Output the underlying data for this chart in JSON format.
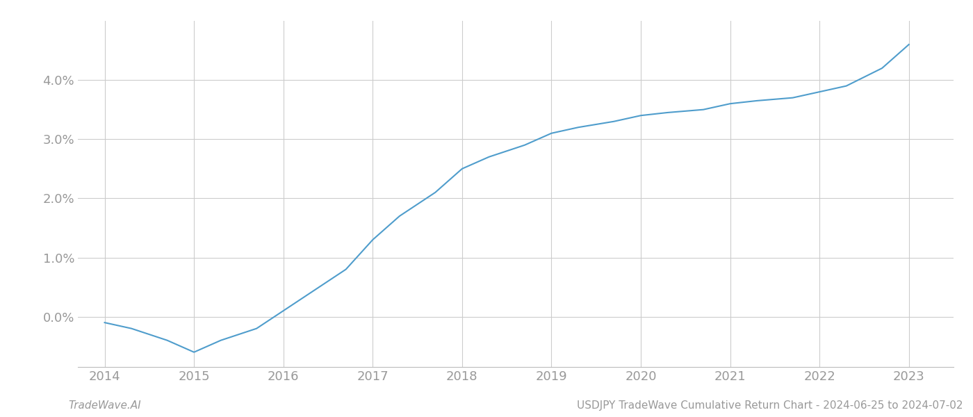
{
  "title": "USDJPY TradeWave Cumulative Return Chart - 2024-06-25 to 2024-07-02",
  "watermark": "TradeWave.AI",
  "x_values": [
    2014.0,
    2014.3,
    2014.7,
    2015.0,
    2015.3,
    2015.7,
    2016.0,
    2016.3,
    2016.7,
    2017.0,
    2017.3,
    2017.7,
    2018.0,
    2018.3,
    2018.7,
    2019.0,
    2019.3,
    2019.7,
    2020.0,
    2020.3,
    2020.7,
    2021.0,
    2021.3,
    2021.7,
    2022.0,
    2022.3,
    2022.7,
    2023.0
  ],
  "y_values": [
    -0.001,
    -0.002,
    -0.004,
    -0.006,
    -0.004,
    -0.002,
    0.001,
    0.004,
    0.008,
    0.013,
    0.017,
    0.021,
    0.025,
    0.027,
    0.029,
    0.031,
    0.032,
    0.033,
    0.034,
    0.0345,
    0.035,
    0.036,
    0.0365,
    0.037,
    0.038,
    0.039,
    0.042,
    0.046
  ],
  "line_color": "#4f9dcc",
  "line_width": 1.5,
  "bg_color": "#ffffff",
  "grid_color": "#cccccc",
  "tick_label_color": "#999999",
  "x_ticks": [
    2014,
    2015,
    2016,
    2017,
    2018,
    2019,
    2020,
    2021,
    2022,
    2023
  ],
  "x_tick_labels": [
    "2014",
    "2015",
    "2016",
    "2017",
    "2018",
    "2019",
    "2020",
    "2021",
    "2022",
    "2023"
  ],
  "y_ticks": [
    0.0,
    0.01,
    0.02,
    0.03,
    0.04
  ],
  "ylim": [
    -0.0085,
    0.05
  ],
  "xlim": [
    2013.7,
    2023.5
  ],
  "title_fontsize": 11,
  "watermark_fontsize": 11,
  "tick_fontsize": 13
}
